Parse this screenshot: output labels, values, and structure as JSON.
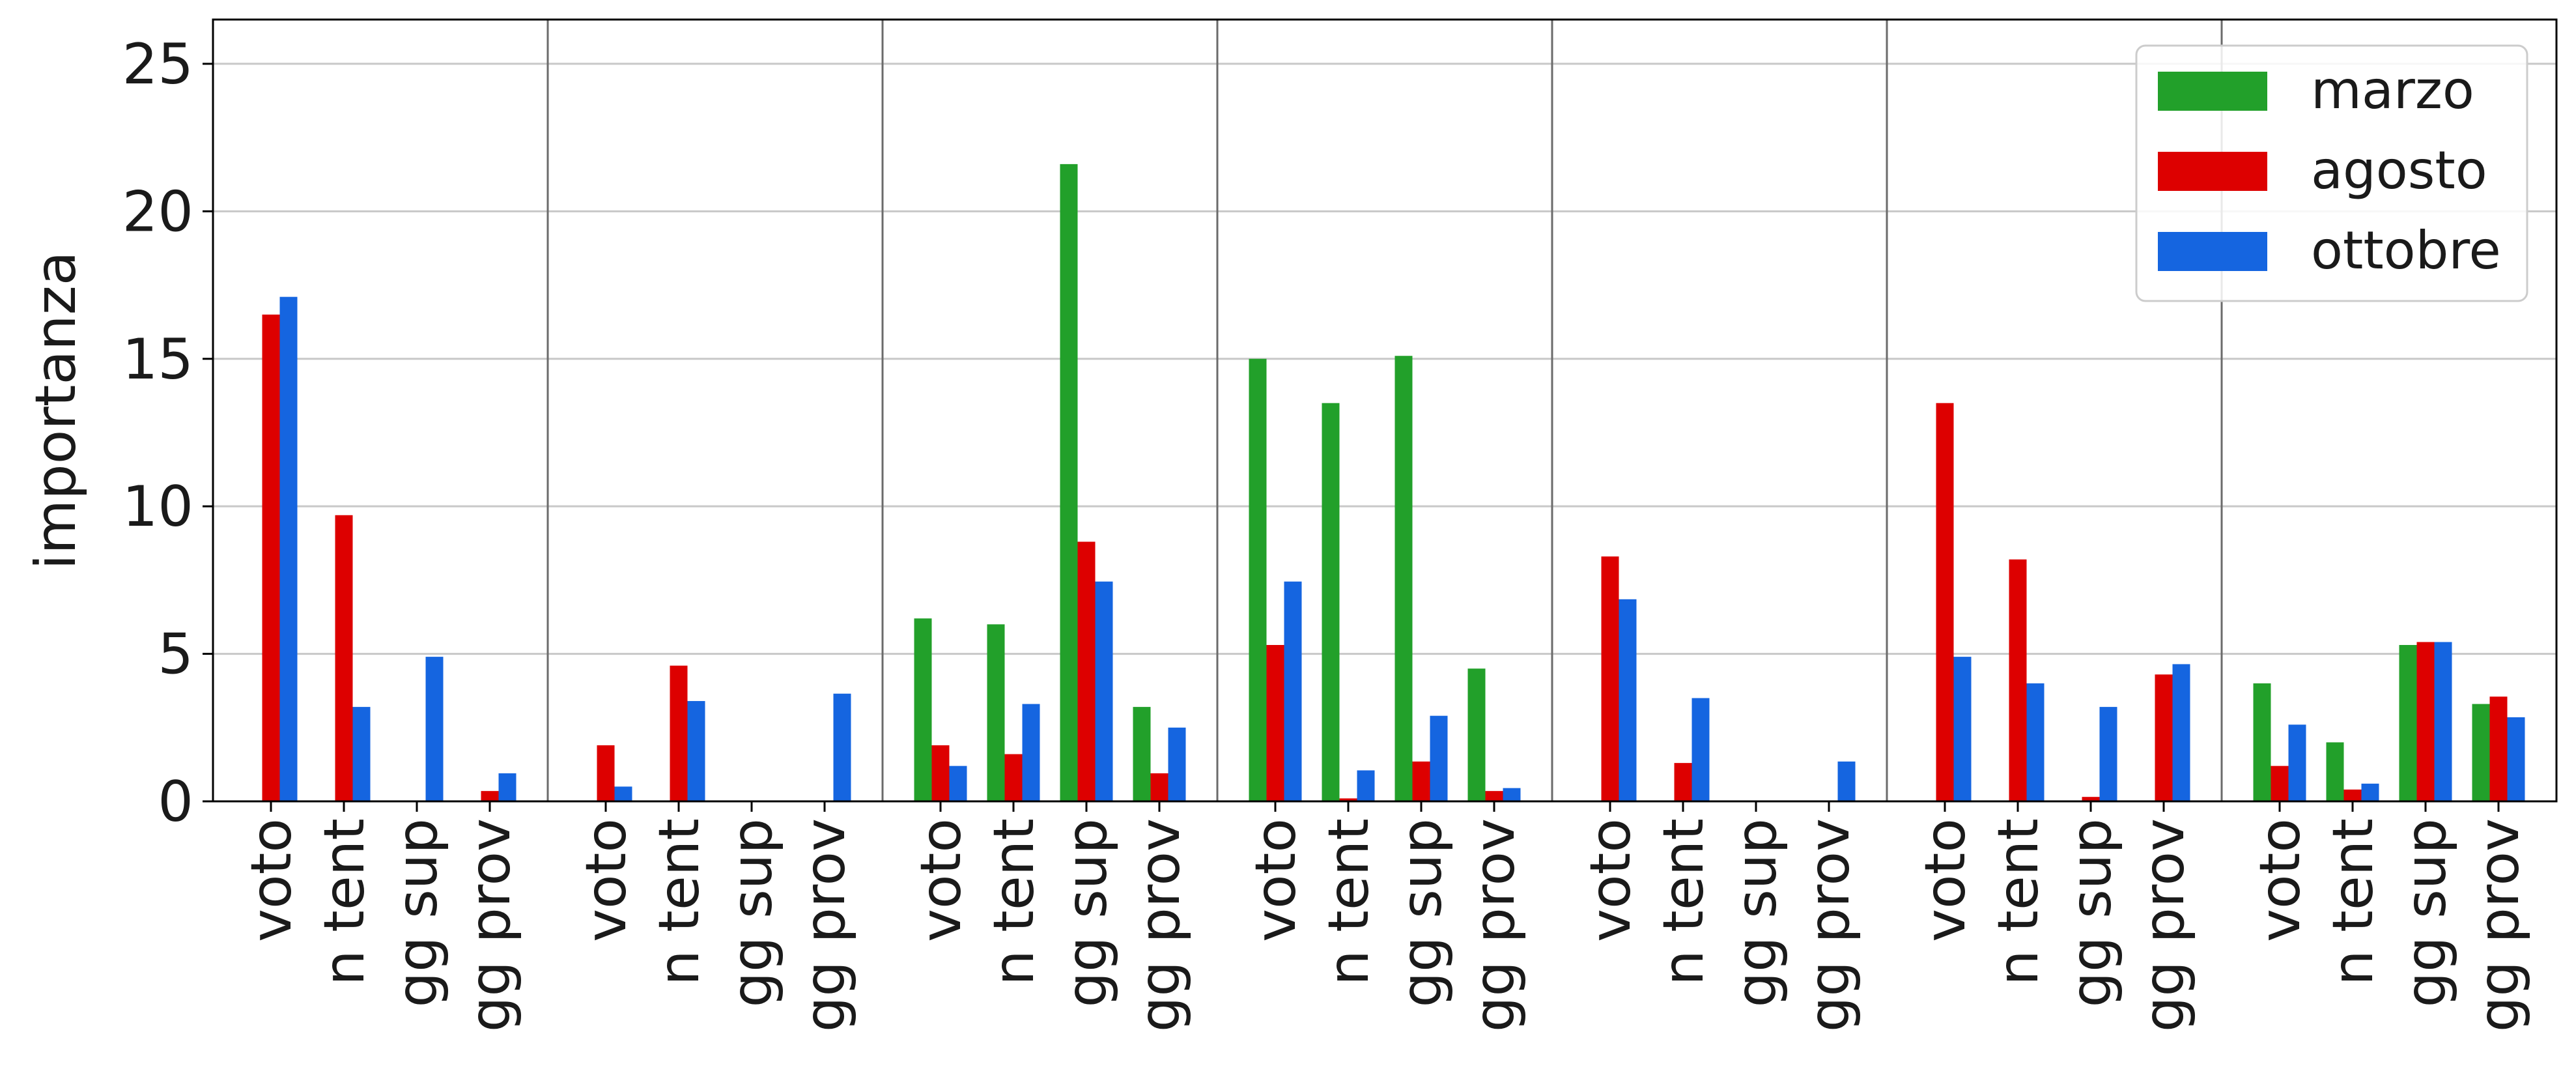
{
  "chart_data": {
    "type": "bar",
    "ylabel": "importanza",
    "ylim": [
      0,
      26.5
    ],
    "yticks": [
      0,
      5,
      10,
      15,
      20,
      25
    ],
    "grid": "horizontal",
    "legend_position": "top-right",
    "categories": [
      "voto",
      "n tent",
      "gg sup",
      "gg prov"
    ],
    "groups": 7,
    "series": [
      {
        "name": "marzo",
        "color": "#22a02a",
        "values": [
          [
            0,
            0,
            0,
            0
          ],
          [
            0,
            0,
            0,
            0
          ],
          [
            6.2,
            6.0,
            21.6,
            3.2
          ],
          [
            15.0,
            13.5,
            15.1,
            4.5
          ],
          [
            0,
            0,
            0,
            0
          ],
          [
            0,
            0,
            0,
            0
          ],
          [
            4.0,
            2.0,
            5.3,
            3.3
          ]
        ]
      },
      {
        "name": "agosto",
        "color": "#dd0000",
        "values": [
          [
            16.5,
            9.7,
            0,
            0.35
          ],
          [
            1.9,
            4.6,
            0,
            0
          ],
          [
            1.9,
            1.6,
            8.8,
            0.95
          ],
          [
            5.3,
            0.1,
            1.35,
            0.35
          ],
          [
            8.3,
            1.3,
            0,
            0
          ],
          [
            13.5,
            8.2,
            0.15,
            4.3
          ],
          [
            1.2,
            0.4,
            5.4,
            3.55
          ]
        ]
      },
      {
        "name": "ottobre",
        "color": "#1565e0",
        "values": [
          [
            17.1,
            3.2,
            4.9,
            0.95
          ],
          [
            0.5,
            3.4,
            0,
            3.65
          ],
          [
            1.2,
            3.3,
            7.45,
            2.5
          ],
          [
            7.45,
            1.05,
            2.9,
            0.45
          ],
          [
            6.85,
            3.5,
            0,
            1.35
          ],
          [
            4.9,
            4.0,
            3.2,
            4.65
          ],
          [
            2.6,
            0.6,
            5.4,
            2.85
          ]
        ]
      }
    ]
  }
}
